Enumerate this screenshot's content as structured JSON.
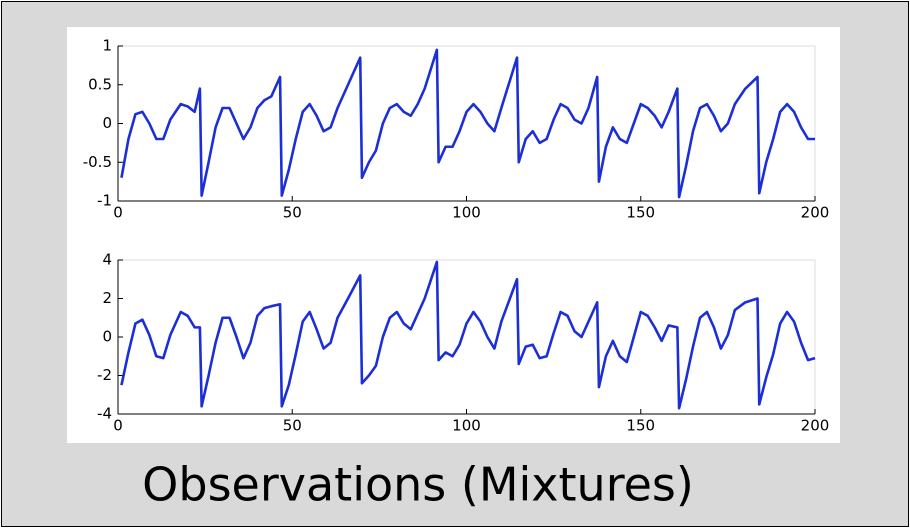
{
  "chart_data": [
    {
      "type": "line",
      "color": "#1c2fd6",
      "x": [
        1,
        3,
        5,
        7,
        9,
        11,
        13,
        15,
        18,
        20,
        22,
        23.5,
        24,
        26,
        28,
        30,
        32,
        34,
        36,
        38,
        40,
        42,
        44,
        46.5,
        47,
        49,
        51,
        53,
        55,
        57,
        59,
        61,
        63,
        66,
        69.5,
        70,
        72,
        74,
        76,
        78,
        80,
        82,
        84,
        86,
        88,
        91.5,
        92,
        94,
        96,
        98,
        100,
        102,
        104,
        106,
        108,
        110,
        114.5,
        115,
        117,
        119,
        121,
        123,
        125,
        127,
        129,
        131,
        133,
        135,
        137.5,
        138,
        140,
        142,
        144,
        146,
        148,
        150,
        152,
        154,
        156,
        158,
        160.5,
        161,
        163,
        165,
        167,
        169,
        171,
        173,
        175,
        177,
        180,
        183.5,
        184,
        186,
        188,
        190,
        192,
        194,
        196,
        198,
        200
      ],
      "series": [
        {
          "values": [
            -0.7,
            -0.2,
            0.12,
            0.15,
            0.0,
            -0.2,
            -0.2,
            0.05,
            0.25,
            0.22,
            0.15,
            0.45,
            -0.93,
            -0.5,
            -0.05,
            0.2,
            0.2,
            0.0,
            -0.2,
            -0.05,
            0.2,
            0.3,
            0.35,
            0.6,
            -0.93,
            -0.6,
            -0.2,
            0.15,
            0.25,
            0.1,
            -0.1,
            -0.05,
            0.2,
            0.5,
            0.85,
            -0.7,
            -0.5,
            -0.35,
            0.0,
            0.2,
            0.25,
            0.15,
            0.1,
            0.25,
            0.45,
            0.95,
            -0.5,
            -0.3,
            -0.3,
            -0.1,
            0.15,
            0.25,
            0.15,
            0.0,
            -0.1,
            0.2,
            0.85,
            -0.5,
            -0.2,
            -0.1,
            -0.25,
            -0.2,
            0.05,
            0.25,
            0.2,
            0.05,
            0.0,
            0.2,
            0.6,
            -0.75,
            -0.3,
            -0.05,
            -0.2,
            -0.25,
            0.0,
            0.25,
            0.2,
            0.1,
            -0.05,
            0.15,
            0.45,
            -0.95,
            -0.55,
            -0.1,
            0.2,
            0.25,
            0.1,
            -0.1,
            0.0,
            0.25,
            0.45,
            0.6,
            -0.9,
            -0.5,
            -0.2,
            0.15,
            0.25,
            0.15,
            -0.05,
            -0.2,
            -0.2
          ]
        }
      ],
      "xlim": [
        0,
        200
      ],
      "xticks": [
        0,
        50,
        100,
        150,
        200
      ],
      "ylim": [
        -1,
        1
      ],
      "yticks": [
        -1,
        -0.5,
        0,
        0.5,
        1
      ]
    },
    {
      "type": "line",
      "color": "#1c2fd6",
      "x": [
        1,
        3,
        5,
        7,
        9,
        11,
        13,
        15,
        18,
        20,
        22,
        23.5,
        24,
        26,
        28,
        30,
        32,
        34,
        36,
        38,
        40,
        42,
        44,
        46.5,
        47,
        49,
        51,
        53,
        55,
        57,
        59,
        61,
        63,
        66,
        69.5,
        70,
        72,
        74,
        76,
        78,
        80,
        82,
        84,
        86,
        88,
        91.5,
        92,
        94,
        96,
        98,
        100,
        102,
        104,
        106,
        108,
        110,
        114.5,
        115,
        117,
        119,
        121,
        123,
        125,
        127,
        129,
        131,
        133,
        135,
        137.5,
        138,
        140,
        142,
        144,
        146,
        148,
        150,
        152,
        154,
        156,
        158,
        160.5,
        161,
        163,
        165,
        167,
        169,
        171,
        173,
        175,
        177,
        180,
        183.5,
        184,
        186,
        188,
        190,
        192,
        194,
        196,
        198,
        200
      ],
      "series": [
        {
          "values": [
            -2.5,
            -0.8,
            0.7,
            0.9,
            0.1,
            -1.0,
            -1.1,
            0.1,
            1.3,
            1.1,
            0.5,
            0.5,
            -3.6,
            -2,
            -0.3,
            1.0,
            1.0,
            0.0,
            -1.1,
            -0.3,
            1.1,
            1.5,
            1.6,
            1.7,
            -3.6,
            -2.5,
            -0.9,
            0.8,
            1.3,
            0.4,
            -0.6,
            -0.3,
            1.0,
            2.0,
            3.2,
            -2.4,
            -2,
            -1.5,
            0.0,
            1.0,
            1.3,
            0.7,
            0.4,
            1.2,
            2.0,
            3.9,
            -1.2,
            -0.8,
            -1.0,
            -0.4,
            0.7,
            1.3,
            0.8,
            0.0,
            -0.6,
            0.8,
            3.0,
            -1.4,
            -0.5,
            -0.4,
            -1.1,
            -1.0,
            0.2,
            1.3,
            1.1,
            0.3,
            0.0,
            0.8,
            1.8,
            -2.6,
            -1.0,
            -0.2,
            -1.0,
            -1.3,
            0.0,
            1.3,
            1.1,
            0.5,
            -0.2,
            0.6,
            0.5,
            -3.7,
            -2.2,
            -0.5,
            1.0,
            1.3,
            0.5,
            -0.6,
            0.1,
            1.4,
            1.8,
            2.0,
            -3.5,
            -2.1,
            -0.9,
            0.7,
            1.3,
            0.8,
            -0.3,
            -1.2,
            -1.1
          ]
        }
      ],
      "xlim": [
        0,
        200
      ],
      "xticks": [
        0,
        50,
        100,
        150,
        200
      ],
      "ylim": [
        -4,
        4
      ],
      "yticks": [
        -4,
        -2,
        0,
        2,
        4
      ]
    }
  ],
  "slide": {
    "caption": "Observations (Mixtures)"
  }
}
